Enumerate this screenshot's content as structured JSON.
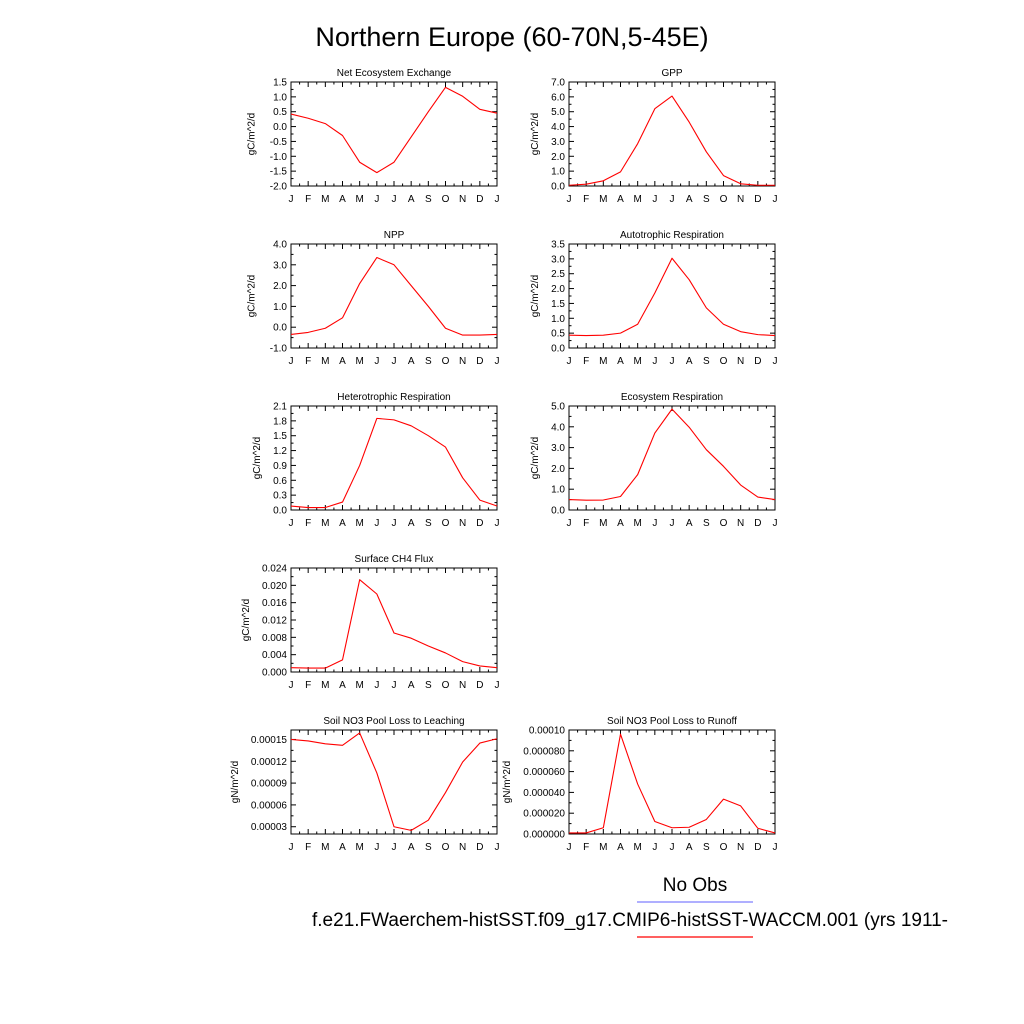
{
  "page": {
    "title": "Northern Europe (60-70N,5-45E)",
    "legend": {
      "obs_label": "No Obs",
      "obs_color": "#7f7fff",
      "model_label": "f.e21.FWaerchem-histSST.f09_g17.CMIP6-histSST-WACCM.001 (yrs 1911-",
      "model_color": "#ff0000"
    }
  },
  "chart_data": [
    {
      "type": "line",
      "title": "Net Ecosystem Exchange",
      "ylabel": "gC/m^2/d",
      "categories": [
        "J",
        "F",
        "M",
        "A",
        "M",
        "J",
        "J",
        "A",
        "S",
        "O",
        "N",
        "D",
        "J"
      ],
      "ylim": [
        -2.0,
        1.5
      ],
      "yticks": [
        -2.0,
        -1.5,
        -1.0,
        -0.5,
        0.0,
        0.5,
        1.0,
        1.5
      ],
      "ytick_labels": [
        "-2.0",
        "-1.5",
        "-1.0",
        "-0.5",
        "0.0",
        "0.5",
        "1.0",
        "1.5"
      ],
      "series": [
        {
          "color": "#ff0000",
          "values": [
            0.42,
            0.28,
            0.1,
            -0.3,
            -1.2,
            -1.55,
            -1.2,
            -0.35,
            0.5,
            1.32,
            1.02,
            0.58,
            0.45
          ]
        }
      ]
    },
    {
      "type": "line",
      "title": "GPP",
      "ylabel": "gC/m^2/d",
      "categories": [
        "J",
        "F",
        "M",
        "A",
        "M",
        "J",
        "J",
        "A",
        "S",
        "O",
        "N",
        "D",
        "J"
      ],
      "ylim": [
        0.0,
        7.0
      ],
      "yticks": [
        0,
        1,
        2,
        3,
        4,
        5,
        6,
        7
      ],
      "ytick_labels": [
        "0.0",
        "1.0",
        "2.0",
        "3.0",
        "4.0",
        "5.0",
        "6.0",
        "7.0"
      ],
      "series": [
        {
          "color": "#ff0000",
          "values": [
            0.05,
            0.12,
            0.35,
            0.95,
            2.85,
            5.2,
            6.05,
            4.3,
            2.3,
            0.7,
            0.15,
            0.05,
            0.05
          ]
        }
      ]
    },
    {
      "type": "line",
      "title": "NPP",
      "ylabel": "gC/m^2/d",
      "categories": [
        "J",
        "F",
        "M",
        "A",
        "M",
        "J",
        "J",
        "A",
        "S",
        "O",
        "N",
        "D",
        "J"
      ],
      "ylim": [
        -1.0,
        4.0
      ],
      "yticks": [
        -1,
        0,
        1,
        2,
        3,
        4
      ],
      "ytick_labels": [
        "-1.0",
        "0.0",
        "1.0",
        "2.0",
        "3.0",
        "4.0"
      ],
      "series": [
        {
          "color": "#ff0000",
          "values": [
            -0.35,
            -0.25,
            -0.05,
            0.45,
            2.1,
            3.35,
            3.0,
            2.0,
            1.0,
            -0.05,
            -0.38,
            -0.38,
            -0.35
          ]
        }
      ]
    },
    {
      "type": "line",
      "title": "Autotrophic Respiration",
      "ylabel": "gC/m^2/d",
      "categories": [
        "J",
        "F",
        "M",
        "A",
        "M",
        "J",
        "J",
        "A",
        "S",
        "O",
        "N",
        "D",
        "J"
      ],
      "ylim": [
        0.0,
        3.5
      ],
      "yticks": [
        0,
        0.5,
        1.0,
        1.5,
        2.0,
        2.5,
        3.0,
        3.5
      ],
      "ytick_labels": [
        "0.0",
        "0.5",
        "1.0",
        "1.5",
        "2.0",
        "2.5",
        "3.0",
        "3.5"
      ],
      "series": [
        {
          "color": "#ff0000",
          "values": [
            0.43,
            0.42,
            0.43,
            0.5,
            0.8,
            1.85,
            3.02,
            2.3,
            1.35,
            0.8,
            0.55,
            0.45,
            0.42
          ]
        }
      ]
    },
    {
      "type": "line",
      "title": "Heterotrophic Respiration",
      "ylabel": "gC/m^2/d",
      "categories": [
        "J",
        "F",
        "M",
        "A",
        "M",
        "J",
        "J",
        "A",
        "S",
        "O",
        "N",
        "D",
        "J"
      ],
      "ylim": [
        0.0,
        2.1
      ],
      "yticks": [
        0,
        0.3,
        0.6,
        0.9,
        1.2,
        1.5,
        1.8,
        2.1
      ],
      "ytick_labels": [
        "0.0",
        "0.3",
        "0.6",
        "0.9",
        "1.2",
        "1.5",
        "1.8",
        "2.1"
      ],
      "series": [
        {
          "color": "#ff0000",
          "values": [
            0.08,
            0.05,
            0.05,
            0.16,
            0.9,
            1.85,
            1.82,
            1.7,
            1.5,
            1.27,
            0.65,
            0.2,
            0.08
          ]
        }
      ]
    },
    {
      "type": "line",
      "title": "Ecosystem Respiration",
      "ylabel": "gC/m^2/d",
      "categories": [
        "J",
        "F",
        "M",
        "A",
        "M",
        "J",
        "J",
        "A",
        "S",
        "O",
        "N",
        "D",
        "J"
      ],
      "ylim": [
        0.0,
        5.0
      ],
      "yticks": [
        0,
        1,
        2,
        3,
        4,
        5
      ],
      "ytick_labels": [
        "0.0",
        "1.0",
        "2.0",
        "3.0",
        "4.0",
        "5.0"
      ],
      "series": [
        {
          "color": "#ff0000",
          "values": [
            0.5,
            0.47,
            0.48,
            0.65,
            1.7,
            3.7,
            4.85,
            3.98,
            2.9,
            2.1,
            1.2,
            0.62,
            0.5
          ]
        }
      ]
    },
    {
      "type": "line",
      "title": "Surface CH4 Flux",
      "ylabel": "gC/m^2/d",
      "categories": [
        "J",
        "F",
        "M",
        "A",
        "M",
        "J",
        "J",
        "A",
        "S",
        "O",
        "N",
        "D",
        "J"
      ],
      "ylim": [
        0.0,
        0.024
      ],
      "yticks": [
        0,
        0.004,
        0.008,
        0.012,
        0.016,
        0.02,
        0.024
      ],
      "ytick_labels": [
        "0.000",
        "0.004",
        "0.008",
        "0.012",
        "0.016",
        "0.020",
        "0.024"
      ],
      "series": [
        {
          "color": "#ff0000",
          "values": [
            0.001,
            0.0009,
            0.0009,
            0.0028,
            0.0213,
            0.018,
            0.009,
            0.0078,
            0.006,
            0.0044,
            0.0024,
            0.0014,
            0.001
          ]
        }
      ]
    },
    {
      "type": "line",
      "title": "Soil NO3 Pool Loss to Leaching",
      "ylabel": "gN/m^2/d",
      "categories": [
        "J",
        "F",
        "M",
        "A",
        "M",
        "J",
        "J",
        "A",
        "S",
        "O",
        "N",
        "D",
        "J"
      ],
      "ylim": [
        2e-05,
        0.000163
      ],
      "yticks": [
        3e-05,
        6e-05,
        9e-05,
        0.00012,
        0.00015
      ],
      "ytick_labels": [
        "0.00003",
        "0.00006",
        "0.00009",
        "0.00012",
        "0.00015"
      ],
      "series": [
        {
          "color": "#ff0000",
          "values": [
            0.00015,
            0.000148,
            0.000144,
            0.000142,
            0.000159,
            0.000104,
            3e-05,
            2.5e-05,
            3.9e-05,
            7.7e-05,
            0.000119,
            0.000145,
            0.000151
          ]
        }
      ]
    },
    {
      "type": "line",
      "title": "Soil NO3 Pool Loss to Runoff",
      "ylabel": "gN/m^2/d",
      "categories": [
        "J",
        "F",
        "M",
        "A",
        "M",
        "J",
        "J",
        "A",
        "S",
        "O",
        "N",
        "D",
        "J"
      ],
      "ylim": [
        0.0,
        0.0001
      ],
      "yticks": [
        0,
        2e-05,
        4e-05,
        6e-05,
        8e-05,
        0.0001
      ],
      "ytick_labels": [
        "0.000000",
        "0.000020",
        "0.000040",
        "0.000060",
        "0.000080",
        "0.00010"
      ],
      "series": [
        {
          "color": "#ff0000",
          "values": [
            1e-06,
            1e-06,
            6e-06,
            9.6e-05,
            4.8e-05,
            1.2e-05,
            6e-06,
            6.5e-06,
            1.4e-05,
            3.35e-05,
            2.7e-05,
            5.5e-06,
            1e-06
          ]
        }
      ]
    }
  ]
}
